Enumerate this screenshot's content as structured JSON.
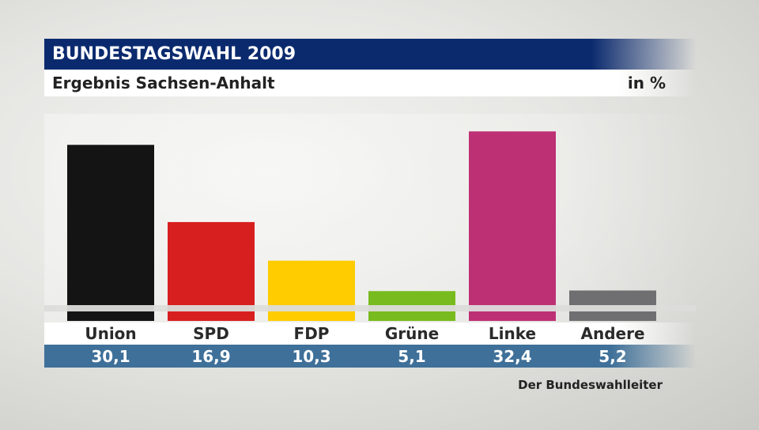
{
  "header": {
    "title": "BUNDESTAGSWAHL 2009",
    "subtitle": "Ergebnis Sachsen-Anhalt",
    "unit": "in %"
  },
  "source": "Der Bundeswahlleiter",
  "chart_data": {
    "type": "bar",
    "title": "BUNDESTAGSWAHL 2009",
    "subtitle": "Ergebnis Sachsen-Anhalt",
    "ylabel": "in %",
    "xlabel": "",
    "categories": [
      "Union",
      "SPD",
      "FDP",
      "Grüne",
      "Linke",
      "Andere"
    ],
    "values": [
      30.1,
      16.9,
      10.3,
      5.1,
      32.4,
      5.2
    ],
    "value_labels": [
      "30,1",
      "16,9",
      "10,3",
      "5,1",
      "32,4",
      "5,2"
    ],
    "colors": [
      "#141414",
      "#d81f1f",
      "#ffcc00",
      "#78bb1e",
      "#bd3074",
      "#6f6f71"
    ],
    "ylim": [
      0,
      35
    ],
    "grid": false,
    "legend": "none"
  }
}
